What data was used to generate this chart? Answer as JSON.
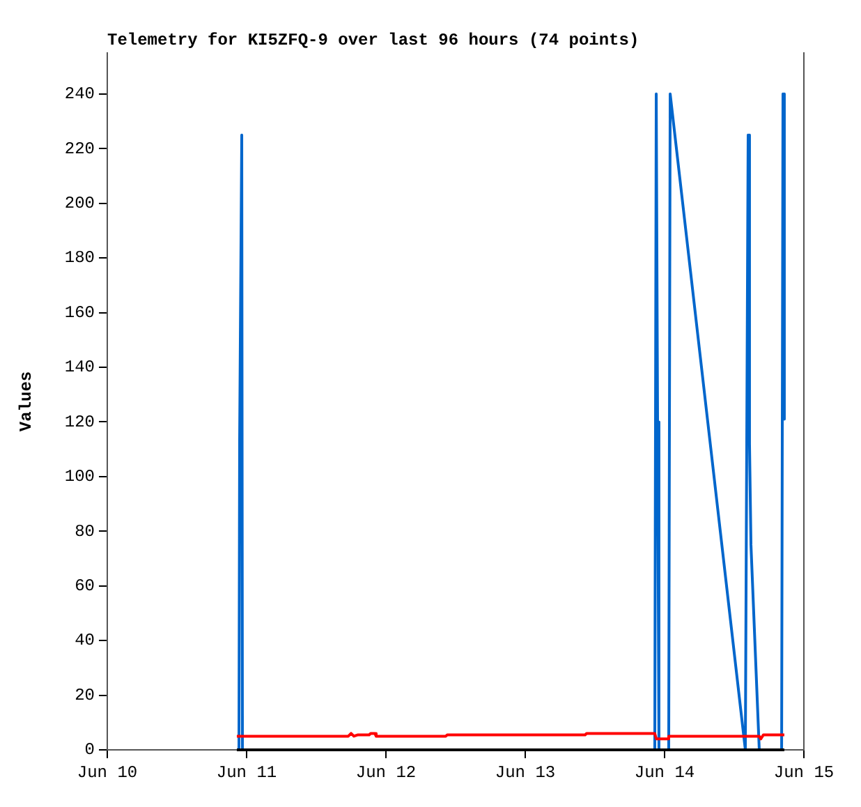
{
  "chart_data": {
    "type": "line",
    "title": "Telemetry for KI5ZFQ-9 over last 96 hours (74 points)",
    "ylabel": "Values",
    "xlim": [
      "--06-10",
      "--06-15"
    ],
    "xticks": [
      {
        "value": "--06-10",
        "label": "Jun 10"
      },
      {
        "value": "--06-11",
        "label": "Jun 11"
      },
      {
        "value": "--06-12",
        "label": "Jun 12"
      },
      {
        "value": "--06-13",
        "label": "Jun 13"
      },
      {
        "value": "--06-14",
        "label": "Jun 14"
      },
      {
        "value": "--06-15",
        "label": "Jun 15"
      }
    ],
    "ylim": [
      0,
      255
    ],
    "yticks": [
      0,
      20,
      40,
      60,
      80,
      100,
      120,
      140,
      160,
      180,
      200,
      220,
      240
    ],
    "marker": "none",
    "line_style": "solid",
    "series": [
      {
        "color": "#0066cc",
        "x": [
          "--06-10T22:41",
          "--06-10T22:48",
          "--06-10T23:10",
          "--06-10T23:17",
          "--06-13T22:19",
          "--06-13T22:34",
          "--06-13T22:48",
          "--06-13T23:02",
          "--06-14T00:43",
          "--06-14T00:58",
          "--06-14T13:55",
          "--06-14T14:24",
          "--06-14T14:38",
          "--06-14T14:53",
          "--06-14T16:19",
          "--06-14T20:10",
          "--06-14T20:24",
          "--06-14T20:38"
        ],
        "values": [
          0,
          113,
          225,
          0,
          0,
          240,
          120,
          0,
          0,
          240,
          0,
          225,
          112,
          75,
          0,
          0,
          240,
          121
        ]
      },
      {
        "color": "#ff0000",
        "x": [
          "--06-10T22:19",
          "--06-11T17:31",
          "--06-11T18:00",
          "--06-11T18:29",
          "--06-11T19:12",
          "--06-11T21:07",
          "--06-11T21:22",
          "--06-11T22:05",
          "--06-11T22:19",
          "--06-12T10:19",
          "--06-12T10:34",
          "--06-13T10:19",
          "--06-13T10:34",
          "--06-13T22:19",
          "--06-13T22:34",
          "--06-14T00:29",
          "--06-14T00:43",
          "--06-14T16:19",
          "--06-14T16:34",
          "--06-14T17:02",
          "--06-14T20:38"
        ],
        "values": [
          5,
          5,
          6,
          5,
          5.5,
          5.5,
          6,
          6,
          5,
          5,
          5.5,
          5.5,
          6,
          6,
          4,
          4,
          5,
          5,
          4,
          5.5,
          5.5
        ]
      },
      {
        "color": "#000000",
        "x": [
          "--06-10T22:19",
          "--06-14T20:38"
        ],
        "values": [
          0,
          0
        ]
      }
    ]
  }
}
